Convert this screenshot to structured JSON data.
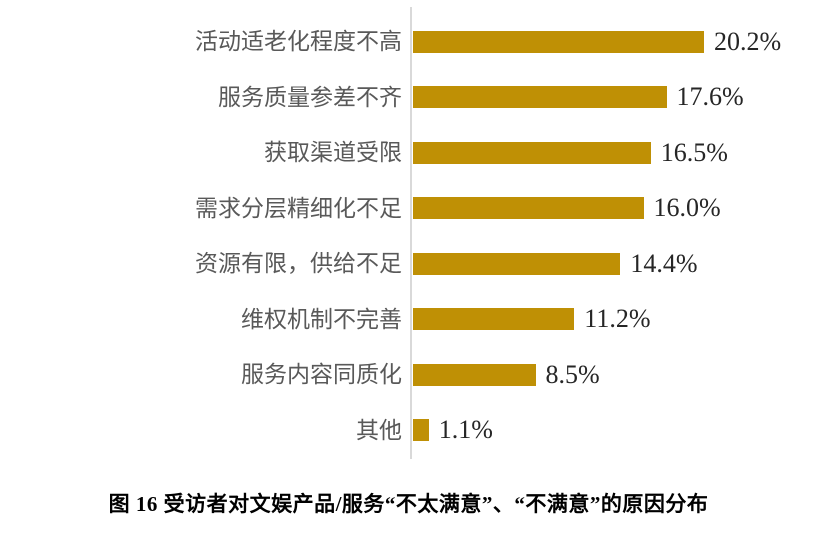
{
  "chart_data": {
    "type": "bar",
    "orientation": "horizontal",
    "title": "图 16 受访者对文娱产品/服务“不太满意”、“不满意”的原因分布",
    "xlabel": "",
    "ylabel": "",
    "categories": [
      "活动适老化程度不高",
      "服务质量参差不齐",
      "获取渠道受限",
      "需求分层精细化不足",
      "资源有限，供给不足",
      "维权机制不完善",
      "服务内容同质化",
      "其他"
    ],
    "values": [
      20.2,
      17.6,
      16.5,
      16.0,
      14.4,
      11.2,
      8.5,
      1.1
    ],
    "value_labels": [
      "20.2%",
      "17.6%",
      "16.5%",
      "16.0%",
      "14.4%",
      "11.2%",
      "8.5%",
      "1.1%"
    ],
    "xlim": [
      0,
      20.2
    ],
    "grid": false,
    "legend": "none",
    "data_labels": "outside-end",
    "colors": {
      "bar": "#BF9005",
      "axis_line": "#D9D9D9",
      "category_label": "#595959",
      "value_label": "#262626",
      "title": "#000000",
      "background": "#FFFFFF"
    }
  }
}
